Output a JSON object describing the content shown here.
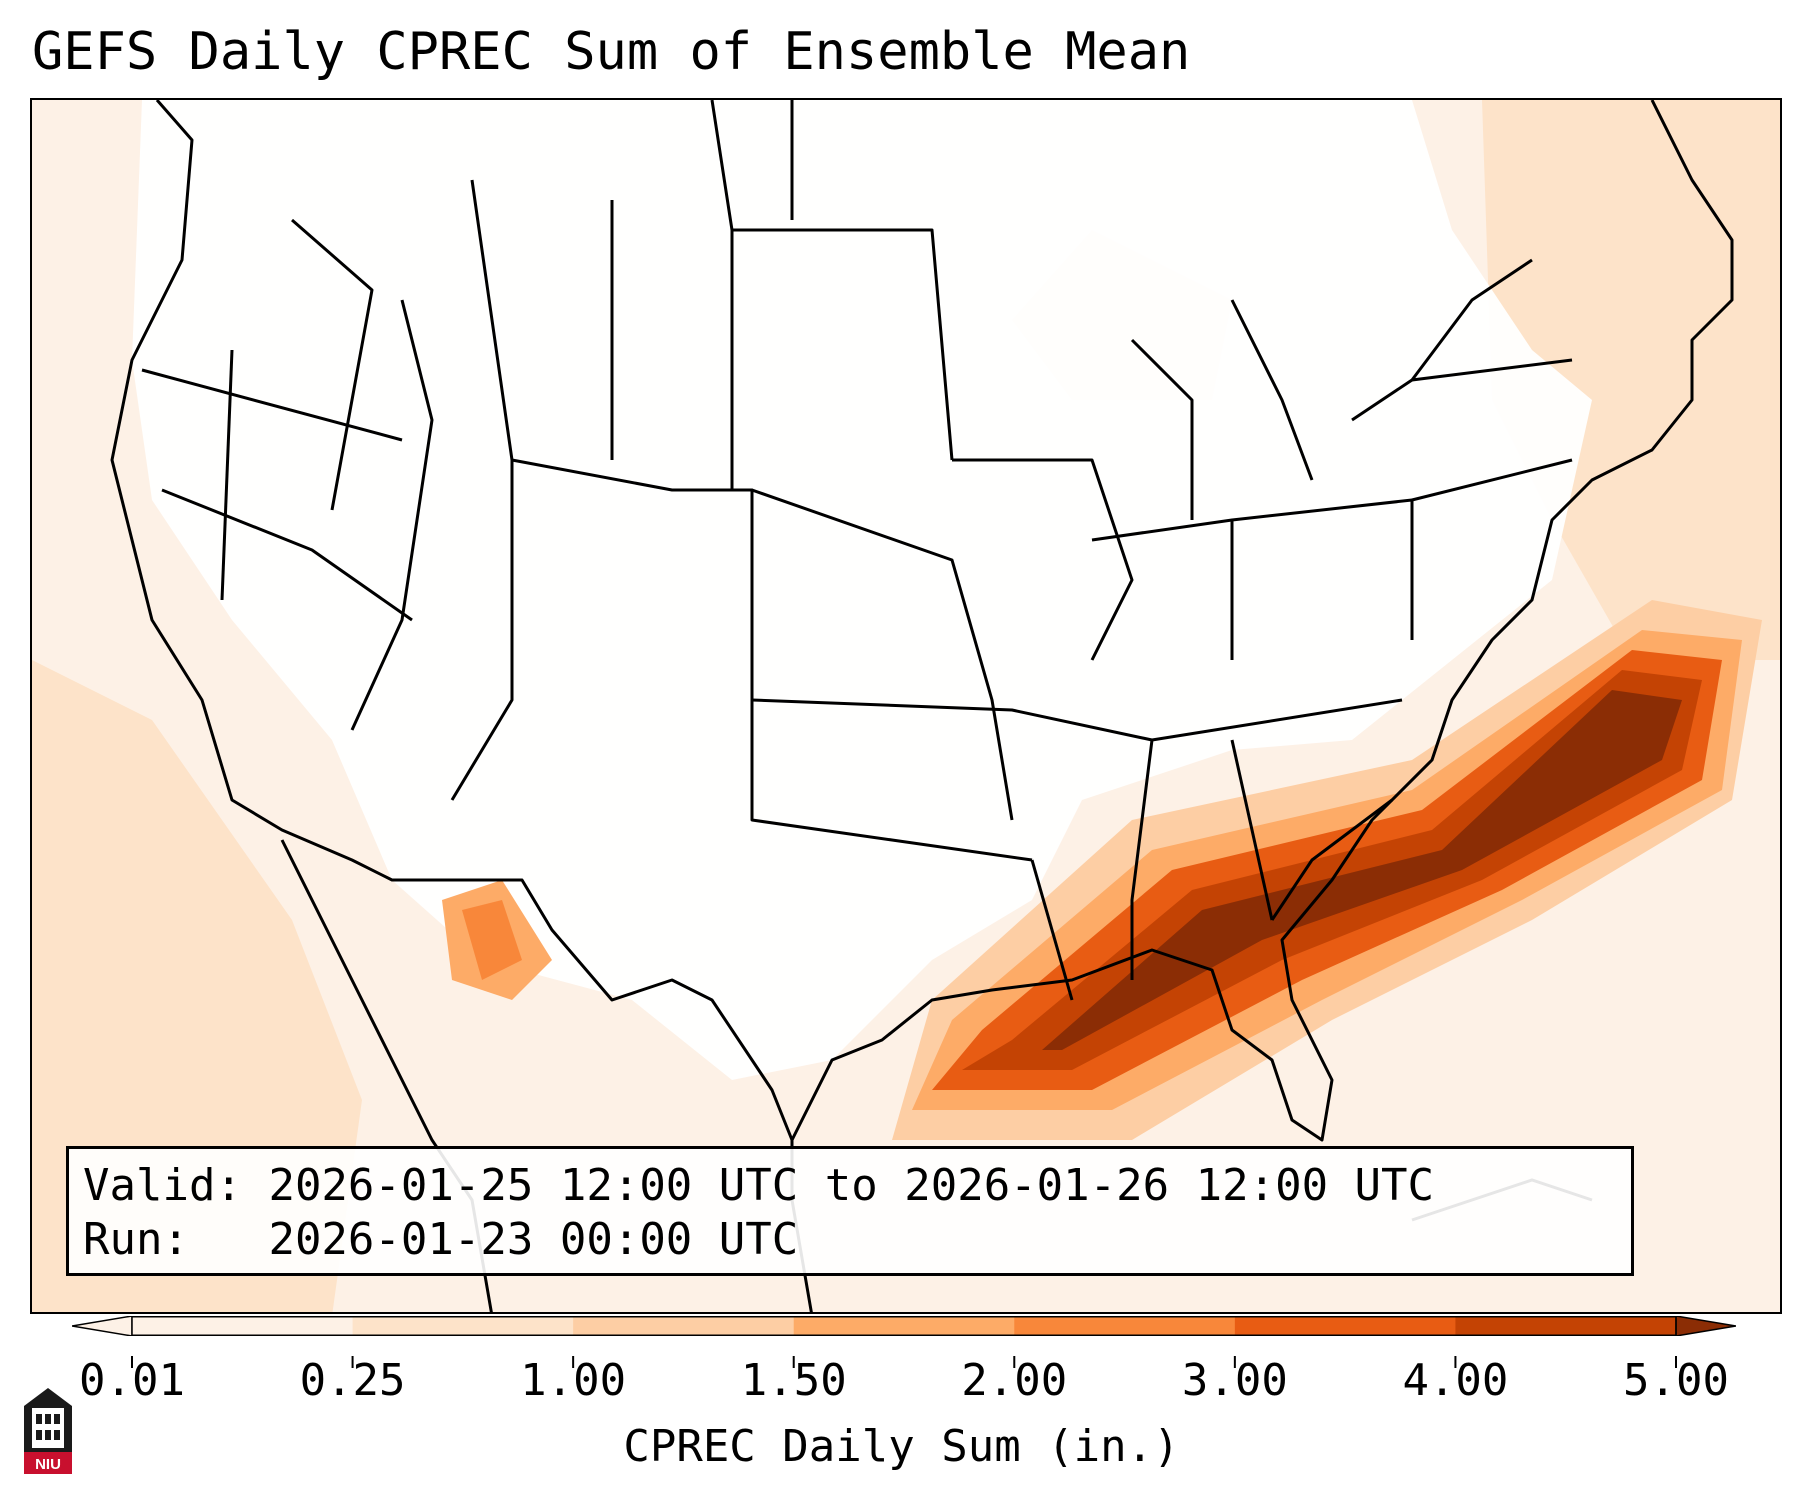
{
  "title": "GEFS Daily CPREC Sum of Ensemble Mean",
  "info": {
    "valid_label": "Valid:",
    "valid_value": "2026-01-25 12:00 UTC to 2026-01-26 12:00 UTC",
    "run_label": "Run:  ",
    "run_value": "2026-01-23 00:00 UTC"
  },
  "colorbar": {
    "label": "CPREC Daily Sum (in.)",
    "ticks": [
      "0.01",
      "0.25",
      "1.00",
      "1.50",
      "2.00",
      "3.00",
      "4.00",
      "5.00"
    ],
    "colors": [
      "#fdf1e6",
      "#fde3c9",
      "#fdcea4",
      "#fdab67",
      "#f8873a",
      "#e85c13",
      "#c44304",
      "#8b2d05"
    ]
  },
  "map": {
    "region": "Continental United States",
    "heavy_color": "#8b2d05",
    "border_color": "#000000"
  },
  "logo": {
    "text": "NIU",
    "icon": "university-tower-logo"
  }
}
